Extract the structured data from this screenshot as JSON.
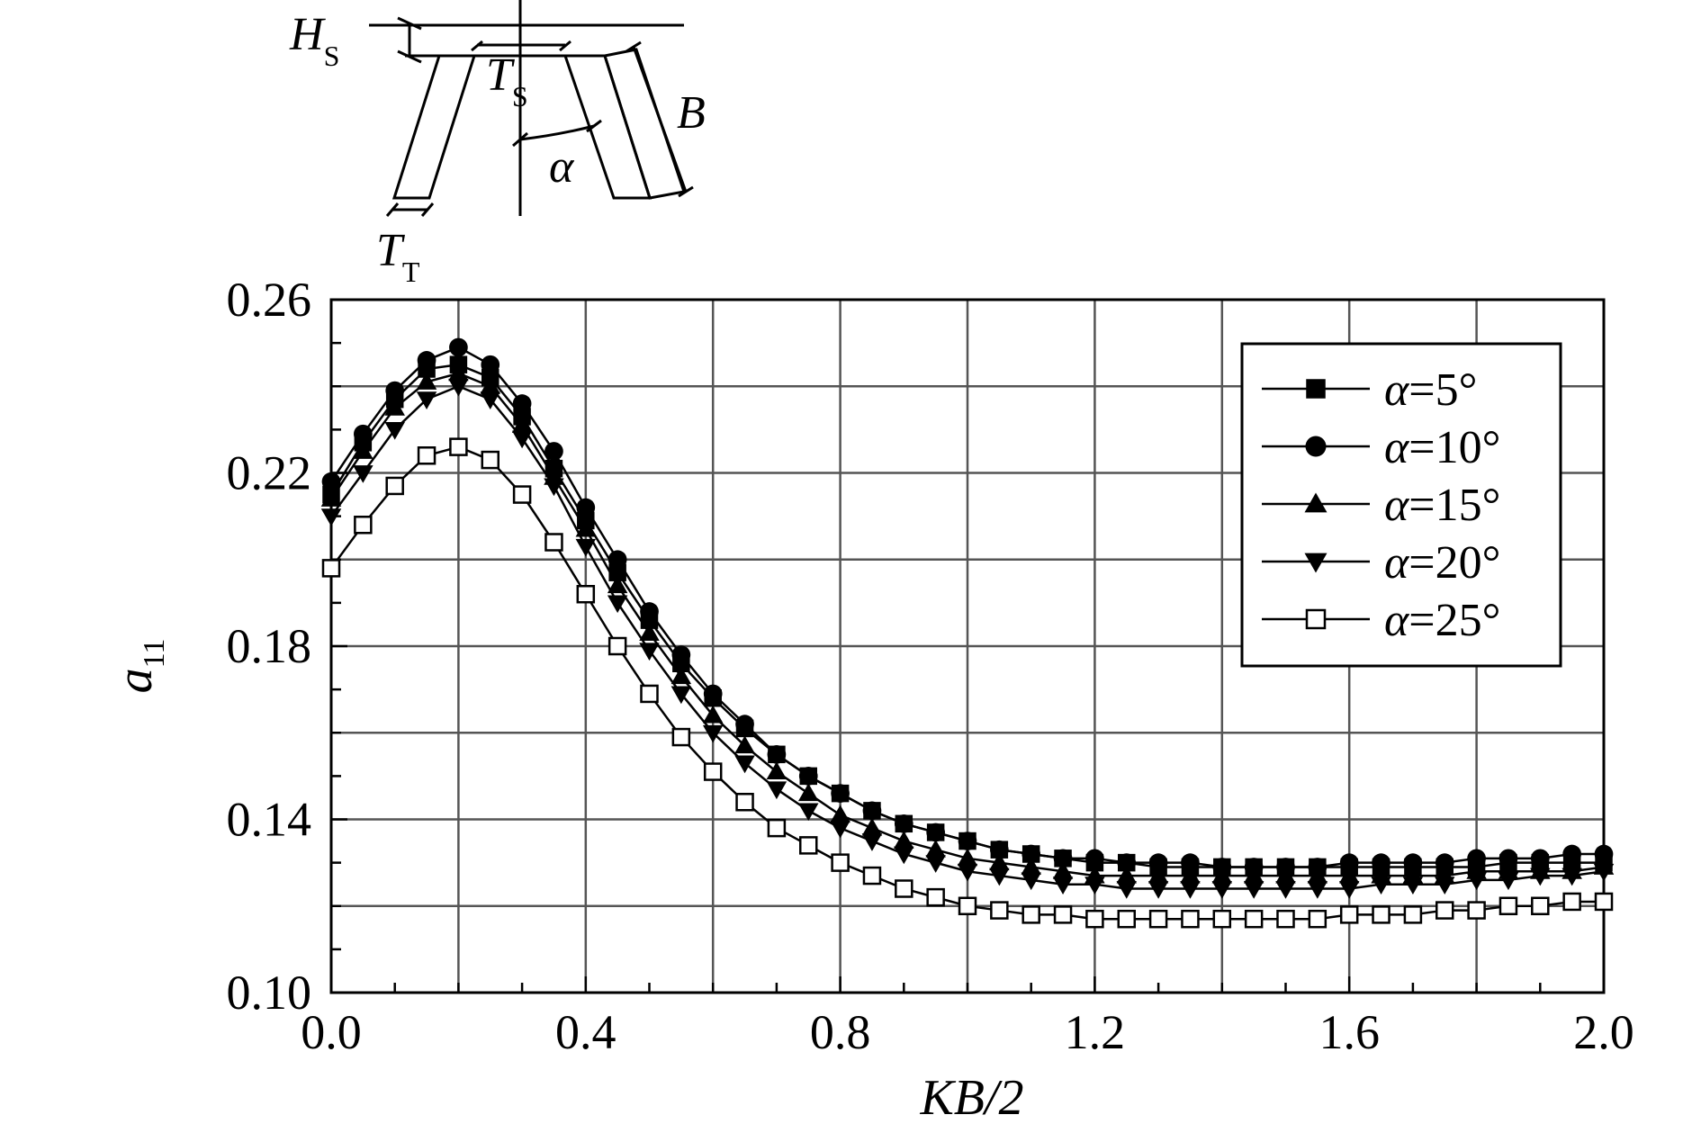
{
  "diagram": {
    "label_hs": "H",
    "label_hs_sub": "S",
    "label_ts": "T",
    "label_ts_sub": "S",
    "label_b": "B",
    "label_alpha": "α",
    "label_tt": "T",
    "label_tt_sub": "T"
  },
  "chart_data": {
    "type": "line",
    "xlabel": "KB/2",
    "ylabel_main": "a",
    "ylabel_sub": "11",
    "xlim": [
      0.0,
      2.0
    ],
    "ylim": [
      0.1,
      0.26
    ],
    "xticks": [
      0.0,
      0.4,
      0.8,
      1.2,
      1.6,
      2.0
    ],
    "xtick_labels": [
      "0.0",
      "0.4",
      "0.8",
      "1.2",
      "1.6",
      "2.0"
    ],
    "yticks": [
      0.1,
      0.14,
      0.18,
      0.22,
      0.26
    ],
    "ytick_labels": [
      "0.10",
      "0.14",
      "0.18",
      "0.22",
      "0.26"
    ],
    "grid": true,
    "legend_position": "top-right",
    "x": [
      0.0,
      0.05,
      0.1,
      0.15,
      0.2,
      0.25,
      0.3,
      0.35,
      0.4,
      0.45,
      0.5,
      0.55,
      0.6,
      0.65,
      0.7,
      0.75,
      0.8,
      0.85,
      0.9,
      0.95,
      1.0,
      1.05,
      1.1,
      1.15,
      1.2,
      1.25,
      1.3,
      1.35,
      1.4,
      1.45,
      1.5,
      1.55,
      1.6,
      1.65,
      1.7,
      1.75,
      1.8,
      1.85,
      1.9,
      1.95,
      2.0
    ],
    "series": [
      {
        "name": "α=5°",
        "marker": "square-filled",
        "values": [
          0.215,
          0.227,
          0.237,
          0.244,
          0.245,
          0.242,
          0.233,
          0.221,
          0.209,
          0.197,
          0.186,
          0.176,
          0.168,
          0.161,
          0.155,
          0.15,
          0.146,
          0.142,
          0.139,
          0.137,
          0.135,
          0.133,
          0.132,
          0.131,
          0.13,
          0.13,
          0.129,
          0.129,
          0.129,
          0.129,
          0.129,
          0.129,
          0.129,
          0.129,
          0.129,
          0.129,
          0.129,
          0.13,
          0.13,
          0.13,
          0.13
        ]
      },
      {
        "name": "α=10°",
        "marker": "circle-filled",
        "values": [
          0.218,
          0.229,
          0.239,
          0.246,
          0.249,
          0.245,
          0.236,
          0.225,
          0.212,
          0.2,
          0.188,
          0.178,
          0.169,
          0.162,
          0.155,
          0.15,
          0.146,
          0.142,
          0.139,
          0.137,
          0.135,
          0.133,
          0.132,
          0.131,
          0.131,
          0.13,
          0.13,
          0.13,
          0.129,
          0.129,
          0.129,
          0.129,
          0.13,
          0.13,
          0.13,
          0.13,
          0.131,
          0.131,
          0.131,
          0.132,
          0.132
        ]
      },
      {
        "name": "α=15°",
        "marker": "triangle-up-filled",
        "values": [
          0.214,
          0.225,
          0.235,
          0.241,
          0.243,
          0.24,
          0.231,
          0.219,
          0.207,
          0.194,
          0.183,
          0.173,
          0.164,
          0.157,
          0.151,
          0.146,
          0.141,
          0.138,
          0.135,
          0.133,
          0.131,
          0.13,
          0.129,
          0.128,
          0.127,
          0.127,
          0.127,
          0.127,
          0.127,
          0.127,
          0.127,
          0.127,
          0.127,
          0.127,
          0.127,
          0.127,
          0.128,
          0.128,
          0.128,
          0.128,
          0.129
        ]
      },
      {
        "name": "α=20°",
        "marker": "triangle-down-filled",
        "values": [
          0.21,
          0.22,
          0.23,
          0.237,
          0.24,
          0.237,
          0.228,
          0.217,
          0.203,
          0.19,
          0.179,
          0.169,
          0.16,
          0.153,
          0.147,
          0.142,
          0.138,
          0.135,
          0.132,
          0.13,
          0.128,
          0.127,
          0.126,
          0.125,
          0.125,
          0.124,
          0.124,
          0.124,
          0.124,
          0.124,
          0.124,
          0.124,
          0.124,
          0.125,
          0.125,
          0.125,
          0.126,
          0.126,
          0.127,
          0.127,
          0.128
        ]
      },
      {
        "name": "α=25°",
        "marker": "square-open",
        "values": [
          0.198,
          0.208,
          0.217,
          0.224,
          0.226,
          0.223,
          0.215,
          0.204,
          0.192,
          0.18,
          0.169,
          0.159,
          0.151,
          0.144,
          0.138,
          0.134,
          0.13,
          0.127,
          0.124,
          0.122,
          0.12,
          0.119,
          0.118,
          0.118,
          0.117,
          0.117,
          0.117,
          0.117,
          0.117,
          0.117,
          0.117,
          0.117,
          0.118,
          0.118,
          0.118,
          0.119,
          0.119,
          0.12,
          0.12,
          0.121,
          0.121
        ]
      }
    ]
  }
}
